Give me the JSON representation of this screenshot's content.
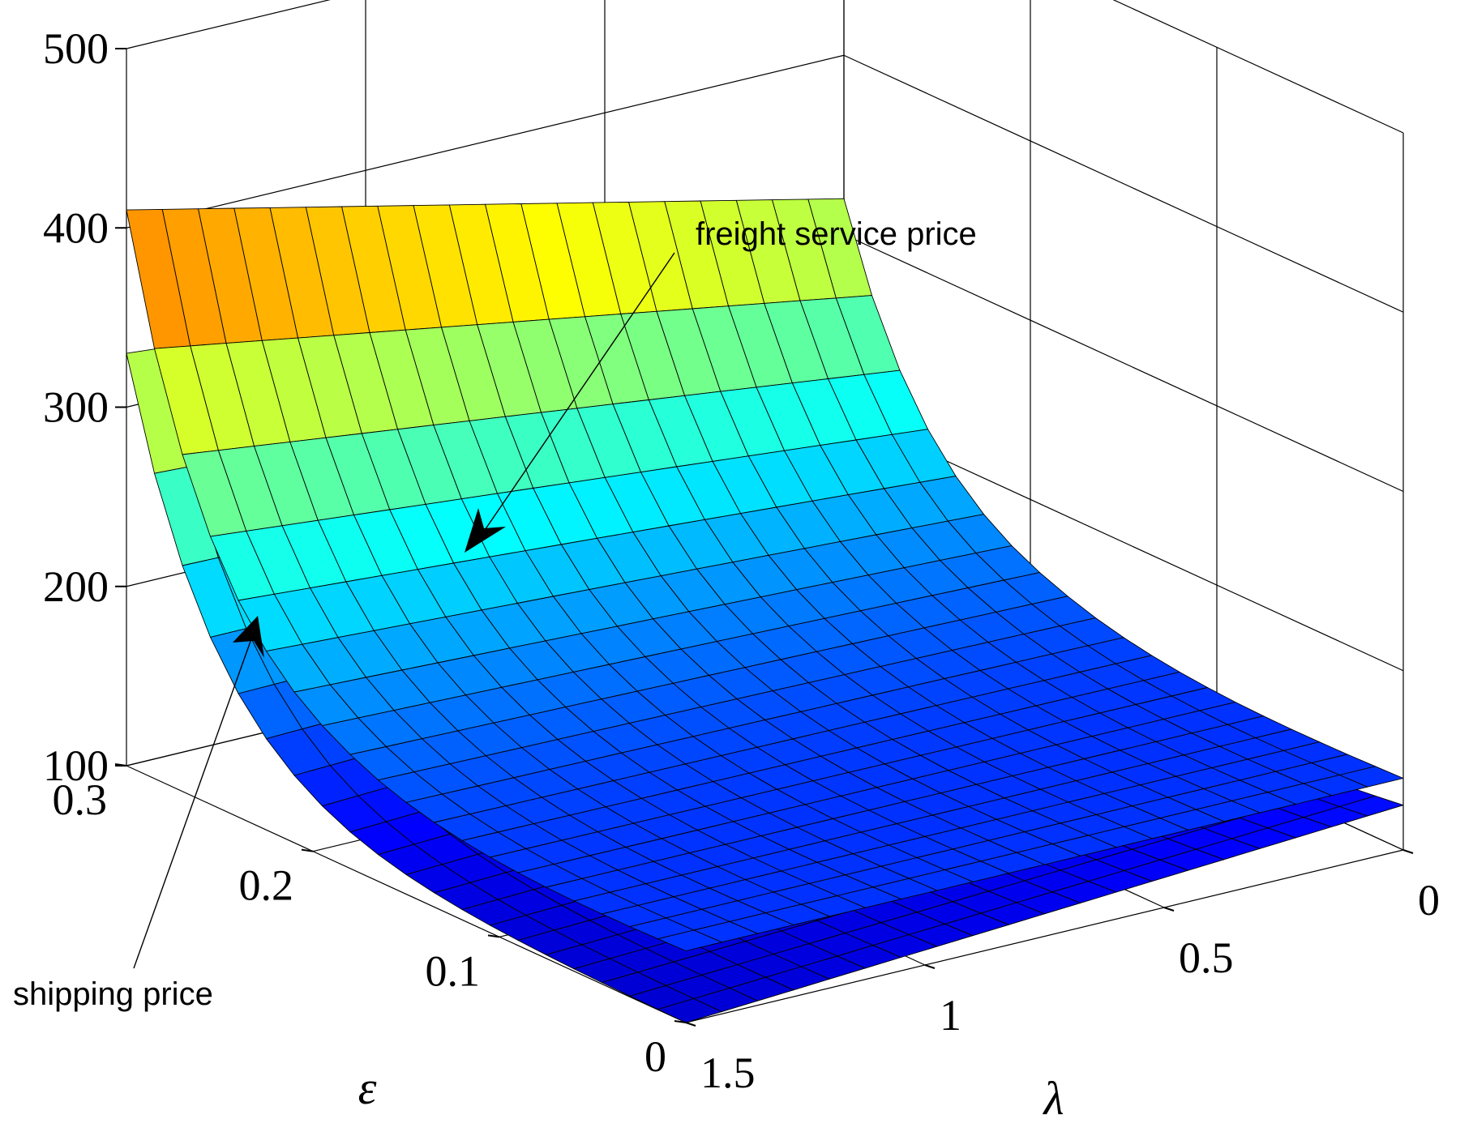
{
  "chart_data": {
    "type": "surface",
    "xlabel": "ε",
    "ylabel": "λ",
    "zlabel": "",
    "xlim": [
      0,
      0.3
    ],
    "ylim": [
      0,
      1.5
    ],
    "zlim": [
      100,
      500
    ],
    "x_ticks": [
      "0",
      "0.1",
      "0.2",
      "0.3"
    ],
    "y_ticks": [
      "0",
      "0.5",
      "1",
      "1.5"
    ],
    "z_ticks": [
      "100",
      "200",
      "300",
      "400",
      "500"
    ],
    "grid": true,
    "colormap": "jet",
    "series": [
      {
        "name": "freight service price",
        "corner_values": {
          "eps0_lam0": 140,
          "eps0_lam1.5": 140,
          "eps0.3_lam0": 320,
          "eps0.3_lam1.5": 410
        },
        "min_value": 132
      },
      {
        "name": "shipping price",
        "corner_values": {
          "eps0_lam0": 125,
          "eps0_lam1.5": 100,
          "eps0.3_lam0": 295,
          "eps0.3_lam1.5": 330
        },
        "min_value": 100
      }
    ],
    "annotations": [
      {
        "text": "freight service price",
        "points_to": "freight service price"
      },
      {
        "text": "shipping price",
        "points_to": "shipping price"
      }
    ]
  }
}
